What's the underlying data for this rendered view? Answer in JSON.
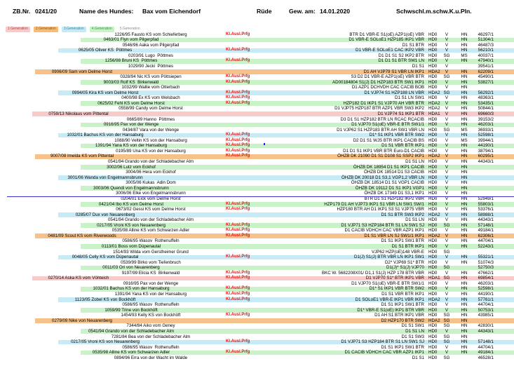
{
  "header": {
    "zb_label": "ZB.Nr.",
    "zb_value": "0241/20",
    "name_label": "Name des Hundes:",
    "name_value": "Bax vom Eichendorf",
    "sex": "Rüde",
    "born_label": "Gew. am:",
    "born_value": "14.01.2020",
    "color_code": "Schwschl.m.schw.K.u.Pln."
  },
  "labels": {
    "kl_ausl_prfg": "Kl.Ausl.Prfg"
  },
  "legend_tabs": [
    {
      "label": "1.Generation",
      "bg": "#f8caca",
      "fg": "#b04848"
    },
    {
      "label": "2.Generation",
      "bg": "#f6bd78",
      "fg": "#9c4f1b"
    },
    {
      "label": "3.Generation",
      "bg": "#c6ebf6",
      "fg": "#2e8ca0"
    },
    {
      "label": "4.Generation",
      "bg": "#c9f2c9",
      "fg": "#2f9e44"
    },
    {
      "label": "5.Generation",
      "bg": "transparent",
      "fg": "#8a8a8a"
    }
  ],
  "generation_colors": {
    "1": "#f8caca",
    "2": "#f6c289",
    "3": "#c6ebf6",
    "4": "#c9f2c9",
    "5": "transparent"
  },
  "divider_color": "#3333c8",
  "rows": [
    {
      "gen": 5,
      "name": "1226/95 Fausto KS vom Schieferberg",
      "kl": true,
      "dot": false,
      "titles": "BTR D1 VBR-E S1(oE) AZP1(oE) VBR",
      "hd": "HD0",
      "grade": "V",
      "reg": "HN",
      "zb": "46297/1"
    },
    {
      "gen": 4,
      "name": "0463/01 Flyn vom Pilgerpfad",
      "kl": false,
      "dot": false,
      "titles": "D1 VBR-E SOLoE1 HZP185 IKP1 VBR",
      "hd": "HD0",
      "grade": "V",
      "reg": "HN",
      "zb": "51304/1"
    },
    {
      "gen": 5,
      "name": "0546/96 Aaka vom Pilgerpfad",
      "kl": false,
      "dot": false,
      "titles": "D1 S1 BTR",
      "hd": "HD0",
      "grade": "V",
      "reg": "HN",
      "zb": "46487/3"
    },
    {
      "gen": 3,
      "name": "0625/05 Oliver KS  Pöttmes",
      "kl": true,
      "dot": false,
      "titles": "D1 VBR-E SOLoE1 CAC IKP2 VBR",
      "hd": "HD0",
      "grade": "V",
      "reg": "HN",
      "zb": "56210/1"
    },
    {
      "gen": 5,
      "name": "0203/91 Lugo  Pöttmes",
      "kl": false,
      "dot": false,
      "titles": "D1 D1 S1 S2 IKP2 BTR",
      "hd": "HD0",
      "grade": "SG",
      "reg": "MS",
      "zb": "40037/1"
    },
    {
      "gen": 4,
      "name": "1256/98 Bruni KS  Pöttmes",
      "kl": true,
      "dot": false,
      "titles": "D1 D1 S1 BTR SW1 LN",
      "hd": "HD0",
      "grade": "V",
      "reg": "HN",
      "zb": "47940/1"
    },
    {
      "gen": 5,
      "name": "1029/90 Jecki  Pöttmes",
      "kl": false,
      "dot": false,
      "titles": "D1 S1",
      "hd": "HD0",
      "grade": "V",
      "reg": "",
      "zb": "39541/1"
    },
    {
      "gen": 2,
      "name": "0906/09 Sam vom Delme Horst",
      "kl": false,
      "dot": false,
      "titles": "D1 AH VJP79 S1 VBR LN IKP1",
      "hd": "HDA2",
      "grade": "V",
      "reg": "HN",
      "zb": "62209/1"
    },
    {
      "gen": 5,
      "name": "0328/94 Nic KS vom Pöttsiepen",
      "kl": true,
      "dot": false,
      "titles": "S3 D2 D1 VBR-E AZP1(oE) VBR BTR",
      "hd": "HD0",
      "grade": "SG",
      "reg": "HN",
      "zb": "45490/1"
    },
    {
      "gen": 4,
      "name": "9003/03 Rolf KS  Birkenwald",
      "kl": true,
      "dot": false,
      "titles": "AD00184804 S1(J) D1 HZP183 BTR SW1 IKP1",
      "hd": "HD0",
      "grade": "V",
      "reg": "HN",
      "zb": "53827/1"
    },
    {
      "gen": 5,
      "name": "1032/99 Wallie vom Otterbach",
      "kl": false,
      "dot": false,
      "titles": "D1 AZP1 DCHVDH CAC CACIB BOB",
      "hd": "HD0",
      "grade": "V",
      "reg": "HN",
      "zb": ""
    },
    {
      "gen": 3,
      "name": "0994/05 Kira KS vom Delme Horst",
      "kl": true,
      "dot": false,
      "titles": "D1 VJP74 S1 HZP188 LN VBR",
      "hd": "HDA2",
      "grade": "SG",
      "reg": "HN",
      "zb": "56292/1"
    },
    {
      "gen": 5,
      "name": "0400/98 Ex KS vom Welsbach",
      "kl": true,
      "dot": false,
      "titles": "D1 S1 LN SW1",
      "hd": "HD0",
      "grade": "V",
      "reg": "HN",
      "zb": "48363/1"
    },
    {
      "gen": 4,
      "name": "0625/02 Fehl KS vom Delme Horst",
      "kl": true,
      "dot": false,
      "titles": "HZP182 D1 IKP1 S1 VJP70 AH VBR BTR",
      "hd": "HDA2",
      "grade": "V",
      "reg": "HN",
      "zb": "53435/1"
    },
    {
      "gen": 5,
      "name": "0558/99 Candy vom Delme Horst",
      "kl": false,
      "dot": false,
      "titles": "D1 VJP75 HZP187 BTR AZP1 VBR SW3 IKP2",
      "hd": "HDA2",
      "grade": "V",
      "reg": "HN",
      "zb": "50844/1"
    },
    {
      "gen": 1,
      "name": "0759/13 Nikolaus vom Pittental",
      "kl": false,
      "dot": false,
      "titles": "D1 VJP74 S1 IKP1 BTR",
      "hd": "HDA1",
      "grade": "V",
      "reg": "HN",
      "zb": "69660/3"
    },
    {
      "gen": 5,
      "name": "0665/89 Hanno  Pöttmes",
      "kl": false,
      "dot": false,
      "titles": "D3 D1 S1 HZP182 BTR LN RCAC RCACIB",
      "hd": "HD0",
      "grade": "V",
      "reg": "HN",
      "zb": "39153/2"
    },
    {
      "gen": 4,
      "name": "0916/95 Pax von der Wenge",
      "kl": false,
      "dot": false,
      "titles": "D1 VJP70 S1(oE) VBR-E BTR SW1/1",
      "hd": "HD0",
      "grade": "V",
      "reg": "HN",
      "zb": "46203/1"
    },
    {
      "gen": 5,
      "name": "0434/87 Vara von der Wenge",
      "kl": false,
      "dot": false,
      "titles": "D1 VJP62 S1 HZP183 BTR AH SW1 VBR LN",
      "hd": "HD0",
      "grade": "SG",
      "reg": "MS",
      "zb": "36933/1"
    },
    {
      "gen": 3,
      "name": "1032/01 Bachus KS von der Hansaburg",
      "kl": true,
      "dot": false,
      "titles": "D1* S1 IKP1 VBR BTR SW2",
      "hd": "HD0",
      "grade": "V",
      "reg": "HN",
      "zb": "52598/1"
    },
    {
      "gen": 5,
      "name": "1088/90 Veltin KS von der Hansaburg",
      "kl": true,
      "dot": false,
      "titles": "D2 D1 S1 WJS BTR IKP1 CACIB BS",
      "hd": "HD0",
      "grade": "V",
      "reg": "MS",
      "zb": "39944/1"
    },
    {
      "gen": 4,
      "name": "1391/94 Yana KS von der Hansaburg",
      "kl": true,
      "dot": true,
      "titles": "D1 S1 VBR BTR IKP1",
      "hd": "HD0",
      "grade": "V",
      "reg": "HN",
      "zb": "44190/1"
    },
    {
      "gen": 5,
      "name": "0195/89 Una KS von der Hansaburg",
      "kl": true,
      "dot": false,
      "titles": "D1 D1 S1 IKP1 VBR BTR Euro-D1 CACIB",
      "hd": "HD0",
      "grade": "V",
      "reg": "HN",
      "zb": "38794/1"
    },
    {
      "gen": 2,
      "name": "9007/08 Imelda KS vom Pittental",
      "kl": true,
      "dot": false,
      "titles": "ÖHZB DK 21090 D1 S1 D108 S1 SSP2 IKP1",
      "hd": "HDA2",
      "grade": "V",
      "reg": "HN",
      "zb": "60295/1"
    },
    {
      "gen": 5,
      "name": "0541/94 Grando von der Schladebacher Alm",
      "kl": false,
      "dot": false,
      "titles": "D1 S1 LN",
      "hd": "HD0",
      "grade": "V",
      "reg": "HN",
      "zb": "44343/1"
    },
    {
      "gen": 4,
      "name": "3002/06 Lutz vom Eckhof",
      "kl": false,
      "dot": false,
      "titles": "ÖHZB DK 18954 D1 S1 IKP1 CACIB",
      "hd": "HD0",
      "grade": "V",
      "reg": "HN",
      "zb": ""
    },
    {
      "gen": 5,
      "name": "3004/06 Hera vom Eckhof",
      "kl": false,
      "dot": false,
      "titles": "ÖHZB DK 18514 D1 S3 CACIB",
      "hd": "HD0",
      "grade": "V",
      "reg": "HN",
      "zb": ""
    },
    {
      "gen": 3,
      "name": "3001/06 Wanda von Engelmannsbrunn",
      "kl": false,
      "dot": false,
      "titles": "ÖHZB DK 20018 D1 S3,1 VGP1,2 VBR LN",
      "hd": "HD0",
      "grade": "V",
      "reg": "HN",
      "zb": ""
    },
    {
      "gen": 5,
      "name": "3005/06 Kukas  Adin Dom",
      "kl": false,
      "dot": false,
      "titles": "ÖHZB DK 18514 D1 S1 VGP1 CACIB",
      "hd": "HD0",
      "grade": "V",
      "reg": "HN",
      "zb": ""
    },
    {
      "gen": 4,
      "name": "3003/06 Quendi von Engelmannsbrunn",
      "kl": false,
      "dot": false,
      "titles": "ÖHZB DK 19112 D1 S1 IKP1 VGP1",
      "hd": "HD0",
      "grade": "V",
      "reg": "HN",
      "zb": ""
    },
    {
      "gen": 5,
      "name": "3006/06 Elke von Engelmannsbrunn",
      "kl": false,
      "dot": false,
      "titles": "ÖHZB DK 17349 D1 S3,1 IKP1",
      "hd": "HD0",
      "grade": "V",
      "reg": "HN",
      "zb": ""
    },
    {
      "gen": 5,
      "name": "0204/01 Eick vom Delme Horst",
      "kl": false,
      "dot": false,
      "titles": "BTR D1 S1 HZP182 IKP2 VBR",
      "hd": "HD0",
      "grade": "V",
      "reg": "HN",
      "zb": "52949/1"
    },
    {
      "gen": 4,
      "name": "0421/04 Ibo KS vom Delme Horst",
      "kl": true,
      "dot": false,
      "titles": "HZP179 D1 AH VJP73 IKP1 S1 VBR LN SW1 SW/1",
      "hd": "HD0",
      "grade": "V",
      "reg": "HN",
      "zb": "55803/1"
    },
    {
      "gen": 5,
      "name": "0673/02 Gessi KS vom Delme Horst",
      "kl": true,
      "dot": false,
      "titles": "HZP180 BTR AH D1 IKP1 S3 S1 VJP75 VBR",
      "hd": "HD0",
      "grade": "V",
      "reg": "HN",
      "zb": "53376/1"
    },
    {
      "gen": 3,
      "name": "0285/07 Dux von Neuarenberg",
      "kl": false,
      "dot": false,
      "titles": "D1 S1 BTR SW3 IKP2",
      "hd": "HDA2",
      "grade": "V",
      "reg": "HN",
      "zb": "58988/1"
    },
    {
      "gen": 5,
      "name": "0541/94 Grando von der Schladebacher Alm",
      "kl": false,
      "dot": false,
      "titles": "D1 S1 LN",
      "hd": "HD0",
      "grade": "V",
      "reg": "HN",
      "zb": "44343/1"
    },
    {
      "gen": 4,
      "name": "0217/05 Vroni KS von Neuarenberg",
      "kl": true,
      "dot": false,
      "titles": "D1 VJP71 S3 HZP184 BTR S1 LN SW1 SJ",
      "hd": "HD0",
      "grade": "SG",
      "reg": "HN",
      "zb": "57148/1"
    },
    {
      "gen": 5,
      "name": "0535/98 Alline KS vom Schwarzen Adler",
      "kl": true,
      "dot": false,
      "titles": "D1 CACIB VDHCH CAC VBR AZP1 IKP1",
      "hd": "HD0",
      "grade": "V",
      "reg": "HN",
      "zb": "49184/1"
    },
    {
      "gen": 2,
      "name": "0481/09 Scout KS vom Riverwoods",
      "kl": true,
      "dot": false,
      "titles": "D1 S1 VBR LN SJ SW1/1 IKP1",
      "hd": "HDA2",
      "grade": "V",
      "reg": "HN",
      "zb": "62306/1"
    },
    {
      "gen": 5,
      "name": "0586/95 Wasov  Rothenuffeln",
      "kl": false,
      "dot": false,
      "titles": "D1 S1 IKP1 SW1 BTR",
      "hd": "HD0",
      "grade": "V",
      "reg": "HN",
      "zb": "44704/1"
    },
    {
      "gen": 4,
      "name": "0113/01 Boss vom Düpenautal",
      "kl": false,
      "dot": false,
      "titles": "D1 S1 BTR IKP1",
      "hd": "HD0",
      "grade": "V",
      "reg": "HN",
      "zb": "52243/1"
    },
    {
      "gen": 5,
      "name": "1514/93 Wilda vom Gerstheimer Grund",
      "kl": false,
      "dot": false,
      "titles": "VJP62 HZP(oE)148 VBR-E",
      "hd": "HD0",
      "grade": "SG",
      "reg": "",
      "zb": ""
    },
    {
      "gen": 3,
      "name": "0048/05 Celly KS vom Düpenautal",
      "kl": true,
      "dot": false,
      "titles": "D1(J) S1(J) BTR VBR LN IKP1 SW1",
      "hd": "HD0",
      "grade": "V",
      "reg": "HN",
      "zb": "55321/1"
    },
    {
      "gen": 5,
      "name": "0539/99 Birko vom Tiefenbruch",
      "kl": false,
      "dot": false,
      "titles": "D2* VJP69 S1* BTR",
      "hd": "HD0",
      "grade": "V",
      "reg": "HN",
      "zb": "51074/3"
    },
    {
      "gen": 4,
      "name": "0011/03 Ori von Neuarenberg",
      "kl": false,
      "dot": false,
      "titles": "D1(J)* S1(J) VJP70",
      "hd": "HD0",
      "grade": "SG",
      "reg": "",
      "zb": "52750/3"
    },
    {
      "gen": 5,
      "name": "9197/99 Elicia KS  Birkenwald",
      "kl": true,
      "dot": false,
      "titles": "BKC W. 5682208X01/ D1,1 S1(J) HZP 178 BTR VBR",
      "hd": "HD0",
      "grade": "V",
      "reg": "HN",
      "zb": "47662/1"
    },
    {
      "gen": 1,
      "name": "0270/14 Aska KS vom Vöhteich",
      "kl": true,
      "dot": false,
      "titles": "D1 VJP70 S1* BTR IKP1 VBR",
      "hd": "HDA1",
      "grade": "SG",
      "reg": "HN",
      "zb": "69854/1"
    },
    {
      "gen": 5,
      "name": "0916/95 Pax von der Wenge",
      "kl": false,
      "dot": false,
      "titles": "D1 VJP70 S1(oE) VBR-E BTR SW1/1",
      "hd": "HD0",
      "grade": "V",
      "reg": "HN",
      "zb": "46203/1"
    },
    {
      "gen": 4,
      "name": "1032/01 Bachus KS von der Hansaburg",
      "kl": true,
      "dot": false,
      "titles": "D1* S1 IKP1 VBR BTR SW2",
      "hd": "HD0",
      "grade": "V",
      "reg": "HN",
      "zb": "52598/1"
    },
    {
      "gen": 5,
      "name": "1391/94 Yana KS von der Hansaburg",
      "kl": true,
      "dot": false,
      "titles": "D1 S1 VBR BTR IKP1",
      "hd": "HD0",
      "grade": "V",
      "reg": "HN",
      "zb": "44190/1"
    },
    {
      "gen": 3,
      "name": "1123/05 Zobel KS von Bockhöft",
      "kl": true,
      "dot": false,
      "titles": "D1 SOLoE1 VBR-E IKP1 VBR IKP1",
      "hd": "HDA2",
      "grade": "V",
      "reg": "HN",
      "zb": "57761/1"
    },
    {
      "gen": 5,
      "name": "0586/95 Wasov  Rothenuffeln",
      "kl": false,
      "dot": false,
      "titles": "D1 S1 IKP1 SW1 BTR",
      "hd": "HD0",
      "grade": "V",
      "reg": "HN",
      "zb": "44704/1"
    },
    {
      "gen": 4,
      "name": "1059/99 Trine von Bockhöft",
      "kl": false,
      "dot": false,
      "titles": "D1* VBR-E S1(oE) IKP1 BTR VBR",
      "hd": "HD0",
      "grade": "V",
      "reg": "HN",
      "zb": "50753/1"
    },
    {
      "gen": 5,
      "name": "1454/93 Kelly KS von Bockhöft",
      "kl": true,
      "dot": false,
      "titles": "D1 AH S1 BTR IKP1 VBR",
      "hd": "HD0",
      "grade": "SG",
      "reg": "HN",
      "zb": "43985/1"
    },
    {
      "gen": 2,
      "name": "0279/09 Nike von Neuarenberg",
      "kl": false,
      "dot": false,
      "titles": "D2 HZP170 BTR SW2",
      "hd": "HDA2",
      "grade": "SG",
      "reg": "HN",
      "zb": ""
    },
    {
      "gen": 5,
      "name": "7344/84 Aiko vom Geney",
      "kl": false,
      "dot": false,
      "titles": "D1 S1 SW1",
      "hd": "HD0",
      "grade": "SG",
      "reg": "HN",
      "zb": "42830/1"
    },
    {
      "gen": 4,
      "name": "0541/94 Grando von der Schladebacher Alm",
      "kl": false,
      "dot": false,
      "titles": "D1 S1 LN",
      "hd": "HD0",
      "grade": "V",
      "reg": "HN",
      "zb": "44343/1"
    },
    {
      "gen": 5,
      "name": "7281/84 Bea von der Schladebacher Alm",
      "kl": false,
      "dot": false,
      "titles": "D1 S1 SW3",
      "hd": "HD0",
      "grade": "SG",
      "reg": "HN",
      "zb": ""
    },
    {
      "gen": 3,
      "name": "0217/05 Vroni KS von Neuarenberg",
      "kl": true,
      "dot": false,
      "titles": "D1 VJP71 S3 HZP184 BTR S1 LN SW1 SJ",
      "hd": "HD0",
      "grade": "SG",
      "reg": "HN",
      "zb": "57148/1"
    },
    {
      "gen": 5,
      "name": "0586/95 Wasov  Rothenuffeln",
      "kl": false,
      "dot": false,
      "titles": "D1 S1 IKP1 SW1 BTR",
      "hd": "HD0",
      "grade": "V",
      "reg": "HN",
      "zb": "44704/1"
    },
    {
      "gen": 4,
      "name": "0535/98 Alline KS vom Schwarzen Adler",
      "kl": true,
      "dot": false,
      "titles": "D1 CACIB VDHCH CAC VBR AZP1 IKP1",
      "hd": "HD0",
      "grade": "V",
      "reg": "HN",
      "zb": "49184/1"
    },
    {
      "gen": 5,
      "name": "0894/96 Erra von der Wacht im Walde",
      "kl": false,
      "dot": false,
      "titles": "D1 S1",
      "hd": "HD0",
      "grade": "SG",
      "reg": "",
      "zb": "46528/1"
    }
  ]
}
